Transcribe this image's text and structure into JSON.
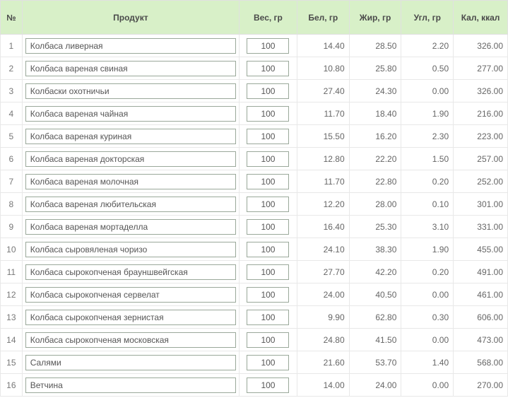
{
  "table": {
    "header_bg": "#d8f0c8",
    "header_text_color": "#4a4a4a",
    "border_color": "#e8e8e8",
    "cell_text_color": "#666666",
    "input_border_color": "#9aa89a",
    "columns": {
      "num": "№",
      "product": "Продукт",
      "weight": "Вес, гр",
      "protein": "Бел, гр",
      "fat": "Жир, гр",
      "carbs": "Угл, гр",
      "kcal": "Кал, ккал"
    },
    "rows": [
      {
        "n": "1",
        "product": "Колбаса ливерная",
        "weight": "100",
        "protein": "14.40",
        "fat": "28.50",
        "carbs": "2.20",
        "kcal": "326.00"
      },
      {
        "n": "2",
        "product": "Колбаса вареная свиная",
        "weight": "100",
        "protein": "10.80",
        "fat": "25.80",
        "carbs": "0.50",
        "kcal": "277.00"
      },
      {
        "n": "3",
        "product": "Колбаски охотничьи",
        "weight": "100",
        "protein": "27.40",
        "fat": "24.30",
        "carbs": "0.00",
        "kcal": "326.00"
      },
      {
        "n": "4",
        "product": "Колбаса вареная чайная",
        "weight": "100",
        "protein": "11.70",
        "fat": "18.40",
        "carbs": "1.90",
        "kcal": "216.00"
      },
      {
        "n": "5",
        "product": "Колбаса вареная куриная",
        "weight": "100",
        "protein": "15.50",
        "fat": "16.20",
        "carbs": "2.30",
        "kcal": "223.00"
      },
      {
        "n": "6",
        "product": "Колбаса вареная докторская",
        "weight": "100",
        "protein": "12.80",
        "fat": "22.20",
        "carbs": "1.50",
        "kcal": "257.00"
      },
      {
        "n": "7",
        "product": "Колбаса вареная молочная",
        "weight": "100",
        "protein": "11.70",
        "fat": "22.80",
        "carbs": "0.20",
        "kcal": "252.00"
      },
      {
        "n": "8",
        "product": "Колбаса вареная любительская",
        "weight": "100",
        "protein": "12.20",
        "fat": "28.00",
        "carbs": "0.10",
        "kcal": "301.00"
      },
      {
        "n": "9",
        "product": "Колбаса вареная мортаделла",
        "weight": "100",
        "protein": "16.40",
        "fat": "25.30",
        "carbs": "3.10",
        "kcal": "331.00"
      },
      {
        "n": "10",
        "product": "Колбаса сыровяленая чоризо",
        "weight": "100",
        "protein": "24.10",
        "fat": "38.30",
        "carbs": "1.90",
        "kcal": "455.00"
      },
      {
        "n": "11",
        "product": "Колбаса сырокопченая брауншвейгская",
        "weight": "100",
        "protein": "27.70",
        "fat": "42.20",
        "carbs": "0.20",
        "kcal": "491.00"
      },
      {
        "n": "12",
        "product": "Колбаса сырокопченая сервелат",
        "weight": "100",
        "protein": "24.00",
        "fat": "40.50",
        "carbs": "0.00",
        "kcal": "461.00"
      },
      {
        "n": "13",
        "product": "Колбаса сырокопченая зернистая",
        "weight": "100",
        "protein": "9.90",
        "fat": "62.80",
        "carbs": "0.30",
        "kcal": "606.00"
      },
      {
        "n": "14",
        "product": "Колбаса сырокопченая московская",
        "weight": "100",
        "protein": "24.80",
        "fat": "41.50",
        "carbs": "0.00",
        "kcal": "473.00"
      },
      {
        "n": "15",
        "product": "Салями",
        "weight": "100",
        "protein": "21.60",
        "fat": "53.70",
        "carbs": "1.40",
        "kcal": "568.00"
      },
      {
        "n": "16",
        "product": "Ветчина",
        "weight": "100",
        "protein": "14.00",
        "fat": "24.00",
        "carbs": "0.00",
        "kcal": "270.00"
      }
    ]
  }
}
